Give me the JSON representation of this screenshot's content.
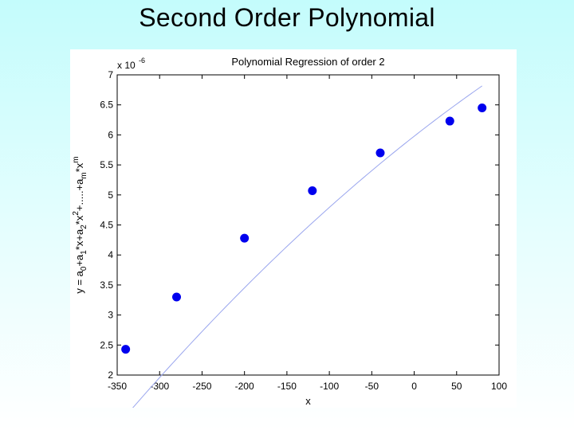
{
  "slide": {
    "title": "Second Order Polynomial"
  },
  "chart_data": {
    "type": "scatter",
    "title": "Polynomial Regression of order 2",
    "xlabel": "x",
    "ylabel_parts": [
      "y = a",
      "0",
      "+a",
      "1",
      "*x+a",
      "2",
      "*x",
      "2",
      "+.....+a",
      "m",
      "*x",
      "m"
    ],
    "y_exponent_label": {
      "base": "x 10",
      "exp": "-6"
    },
    "xlim": [
      -350,
      100
    ],
    "ylim": [
      2,
      7
    ],
    "y_scale": 1e-06,
    "xticks": [
      -350,
      -300,
      -250,
      -200,
      -150,
      -100,
      -50,
      0,
      50,
      100
    ],
    "yticks": [
      2,
      2.5,
      3,
      3.5,
      4,
      4.5,
      5,
      5.5,
      6,
      6.5,
      7
    ],
    "xtick_labels": [
      "-350",
      "-300",
      "-250",
      "-200",
      "-150",
      "-100",
      "-50",
      "0",
      "50",
      "100"
    ],
    "ytick_labels": [
      "2",
      "2.5",
      "3",
      "3.5",
      "4",
      "4.5",
      "5",
      "5.5",
      "6",
      "6.5",
      "7"
    ],
    "grid": false,
    "series": [
      {
        "kind": "points",
        "color": "#0000ee",
        "x": [
          -340,
          -280,
          -200,
          -120,
          -40,
          42,
          80
        ],
        "y": [
          2.43,
          3.3,
          4.28,
          5.07,
          5.7,
          6.23,
          6.45
        ]
      },
      {
        "kind": "fit-curve",
        "color": "#9aa6ee",
        "coefficients": [
          5.978,
          0.011087,
          -7.7e-06
        ],
        "x_range": [
          -340,
          80
        ]
      }
    ]
  }
}
